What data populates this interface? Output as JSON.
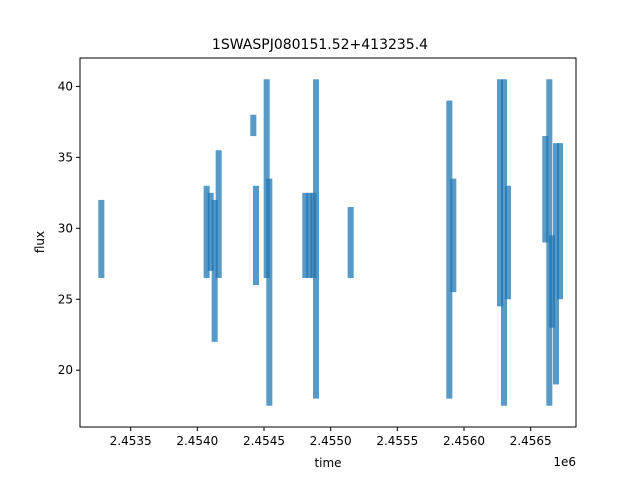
{
  "chart_data": {
    "type": "scatter",
    "title": "1SWASPJ080151.52+413235.4",
    "xlabel": "time",
    "ylabel": "flux",
    "x_offset_label": "1e6",
    "xlim": [
      2453120,
      2456840
    ],
    "ylim": [
      16.0,
      42.0
    ],
    "x_ticks": [
      2453500,
      2454000,
      2454500,
      2455000,
      2455500,
      2456000,
      2456500
    ],
    "x_tick_labels": [
      "2.4535",
      "2.4540",
      "2.4545",
      "2.4550",
      "2.4555",
      "2.4560",
      "2.4565"
    ],
    "y_ticks": [
      20,
      25,
      30,
      35,
      40
    ],
    "y_tick_labels": [
      "20",
      "25",
      "30",
      "35",
      "40"
    ],
    "grid": false,
    "legend": "none",
    "marker_color": "#1f77b4",
    "series": [
      {
        "points": [
          {
            "x": 2453280,
            "y": [
              26.5,
              32.0
            ]
          },
          {
            "x": 2454070,
            "y": [
              26.5,
              33.0
            ]
          },
          {
            "x": 2454100,
            "y": [
              27.0,
              32.5
            ]
          },
          {
            "x": 2454130,
            "y": [
              22.0,
              32.0
            ]
          },
          {
            "x": 2454160,
            "y": [
              26.5,
              35.5
            ]
          },
          {
            "x": 2454420,
            "y": [
              36.5,
              38.0
            ]
          },
          {
            "x": 2454440,
            "y": [
              26.0,
              33.0
            ]
          },
          {
            "x": 2454520,
            "y": [
              26.5,
              40.5
            ]
          },
          {
            "x": 2454540,
            "y": [
              17.5,
              33.5
            ]
          },
          {
            "x": 2454810,
            "y": [
              26.5,
              32.5
            ]
          },
          {
            "x": 2454840,
            "y": [
              26.5,
              32.5
            ]
          },
          {
            "x": 2454870,
            "y": [
              26.5,
              32.5
            ]
          },
          {
            "x": 2454890,
            "y": [
              18.0,
              40.5
            ]
          },
          {
            "x": 2455150,
            "y": [
              26.5,
              31.5
            ]
          },
          {
            "x": 2455890,
            "y": [
              18.0,
              39.0
            ]
          },
          {
            "x": 2455920,
            "y": [
              25.5,
              33.5
            ]
          },
          {
            "x": 2456270,
            "y": [
              24.5,
              40.5
            ]
          },
          {
            "x": 2456300,
            "y": [
              17.5,
              40.5
            ]
          },
          {
            "x": 2456330,
            "y": [
              25.0,
              33.0
            ]
          },
          {
            "x": 2456610,
            "y": [
              29.0,
              36.5
            ]
          },
          {
            "x": 2456640,
            "y": [
              17.5,
              40.5
            ]
          },
          {
            "x": 2456660,
            "y": [
              23.0,
              29.5
            ]
          },
          {
            "x": 2456690,
            "y": [
              19.0,
              36.0
            ]
          },
          {
            "x": 2456720,
            "y": [
              25.0,
              36.0
            ]
          }
        ]
      }
    ]
  }
}
